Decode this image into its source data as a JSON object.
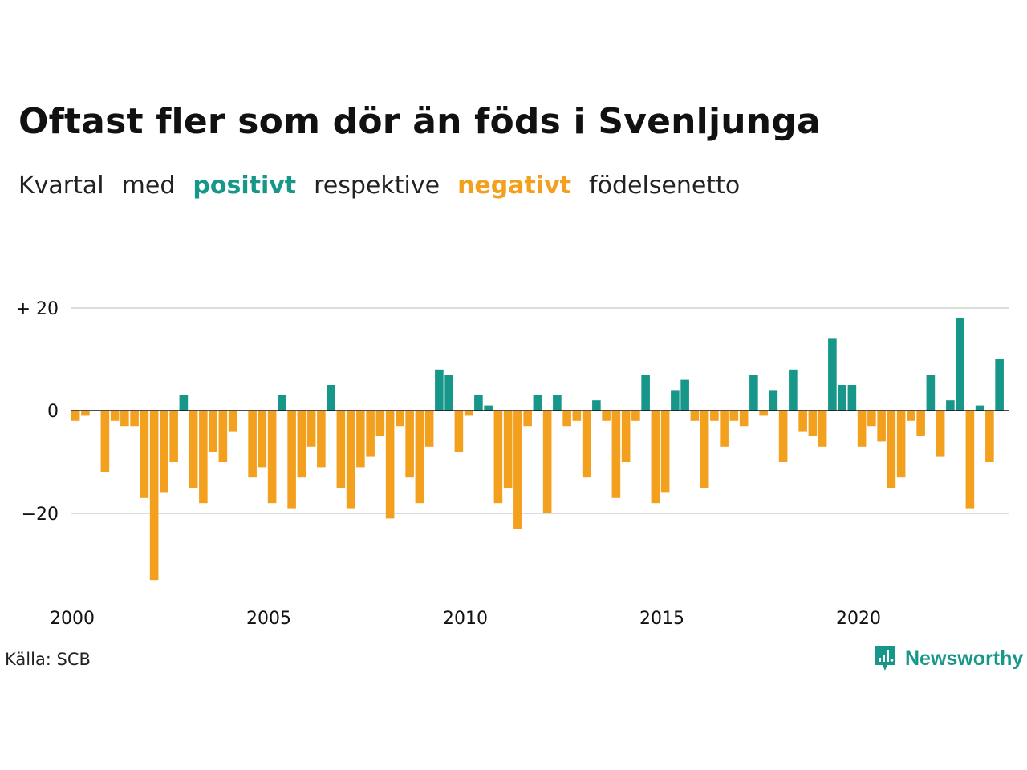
{
  "title": "Oftast fler som dör än föds i Svenljunga",
  "subtitle": {
    "w1": "Kvartal",
    "w2": "med",
    "positive": "positivt",
    "w3": "respektive",
    "negative": "negativt",
    "w4": "födelsenetto"
  },
  "colors": {
    "positive": "#17968a",
    "negative": "#f4a01f",
    "grid": "#dddddd",
    "zero_line": "#111111"
  },
  "chart_data": {
    "type": "bar",
    "x_tick_labels": [
      "2000",
      "2005",
      "2010",
      "2015",
      "2020"
    ],
    "y_tick_labels": [
      "+ 20",
      "0",
      "−20"
    ],
    "y_ticks": [
      20,
      0,
      -20
    ],
    "ylim": [
      -35,
      25
    ],
    "start_year": 2000,
    "grid": true,
    "values": [
      -2,
      -1,
      0,
      -12,
      -2,
      -3,
      -3,
      -17,
      -33,
      -16,
      -10,
      3,
      -15,
      -18,
      -8,
      -10,
      -4,
      0,
      -13,
      -11,
      -18,
      3,
      -19,
      -13,
      -7,
      -11,
      5,
      -15,
      -19,
      -11,
      -9,
      -5,
      -21,
      -3,
      -13,
      -18,
      -7,
      8,
      7,
      -8,
      -1,
      3,
      1,
      -18,
      -15,
      -23,
      -3,
      3,
      -20,
      3,
      -3,
      -2,
      -13,
      2,
      -2,
      -17,
      -10,
      -2,
      7,
      -18,
      -16,
      4,
      6,
      -2,
      -15,
      -2,
      -7,
      -2,
      -3,
      7,
      -1,
      4,
      -10,
      8,
      -4,
      -5,
      -7,
      14,
      5,
      5,
      -7,
      -3,
      -6,
      -15,
      -13,
      -2,
      -5,
      7,
      -9,
      2,
      18,
      -19,
      1,
      -10,
      10
    ]
  },
  "footer": {
    "source": "Källa: SCB",
    "brand": "Newsworthy"
  }
}
